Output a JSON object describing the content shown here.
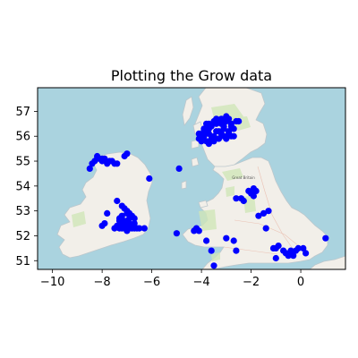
{
  "chart_data": {
    "type": "scatter",
    "title": "Plotting the Grow data",
    "xlabel": "",
    "ylabel": "",
    "xlim": [
      -10.6,
      1.8
    ],
    "ylim": [
      50.65,
      57.95
    ],
    "xticks": [
      -10,
      -8,
      -6,
      -4,
      -2,
      0
    ],
    "xtick_labels": [
      "−10",
      "−8",
      "−6",
      "−4",
      "−2",
      "0"
    ],
    "yticks": [
      51,
      52,
      53,
      54,
      55,
      56,
      57
    ],
    "ytick_labels": [
      "51",
      "52",
      "53",
      "54",
      "55",
      "56",
      "57"
    ],
    "grid": false,
    "background": "OpenStreetMap basemap of Great Britain and Ireland",
    "map_labels": [
      "Great Britain"
    ],
    "colors": {
      "marker": "#0000ff",
      "sea": "#aad3df",
      "land": "#f2efe9",
      "green": "#cfe6b8"
    },
    "series": [
      {
        "x": [
          -3.9,
          -3.7,
          -3.5,
          -3.4,
          -3.3,
          -3.2,
          -3.1,
          -3.0,
          -2.9,
          -2.8,
          -2.7,
          -2.9,
          -3.2,
          -3.5,
          -3.7,
          -3.4,
          -3.1,
          -2.8,
          -3.6,
          -3.8,
          -4.0,
          -4.1,
          -3.9,
          -3.5,
          -3.1,
          -2.7,
          -2.9,
          -3.3,
          -3.6,
          -3.8,
          -3.2,
          -3.0,
          -2.6,
          -3.4,
          -3.7,
          -4.1,
          -3.9,
          -3.5,
          -3.3,
          -3.0,
          -2.8,
          -2.5,
          -3.1,
          -3.7
        ],
        "y": [
          56.3,
          56.5,
          56.6,
          56.7,
          56.6,
          56.5,
          56.4,
          56.6,
          56.7,
          56.5,
          56.3,
          56.2,
          56.1,
          56.0,
          56.1,
          56.2,
          56.3,
          56.4,
          55.9,
          55.8,
          55.8,
          55.9,
          56.0,
          55.9,
          56.0,
          56.0,
          56.1,
          56.2,
          56.4,
          56.5,
          56.7,
          56.8,
          56.6,
          56.5,
          56.3,
          56.1,
          56.2,
          55.8,
          55.9,
          55.9,
          56.0,
          56.6,
          56.3,
          55.7
        ]
      },
      {
        "x": [
          -8.5,
          -8.4,
          -8.3,
          -8.2,
          -8.1,
          -8.0,
          -7.9,
          -7.8,
          -7.6,
          -7.5,
          -8.2,
          -8.0,
          -7.7,
          -7.4,
          -7.1,
          -7.0,
          -6.1,
          -4.9
        ],
        "y": [
          54.7,
          54.9,
          55.0,
          55.1,
          55.1,
          55.0,
          55.1,
          54.9,
          55.0,
          54.9,
          55.2,
          55.1,
          55.0,
          54.9,
          55.2,
          55.3,
          54.3,
          54.7
        ]
      },
      {
        "x": [
          -7.2,
          -7.1,
          -7.0,
          -6.9,
          -6.8,
          -6.7,
          -7.3,
          -7.2,
          -7.0,
          -6.9,
          -6.8,
          -7.1,
          -7.0,
          -6.9,
          -7.2,
          -7.4,
          -7.5,
          -7.3,
          -7.1,
          -6.9,
          -6.7,
          -6.6,
          -7.0,
          -7.2,
          -6.8,
          -7.0,
          -6.9,
          -6.7,
          -7.1,
          -7.3,
          -6.5,
          -6.3,
          -7.4,
          -7.8,
          -8.0,
          -7.9
        ],
        "y": [
          53.2,
          53.1,
          53.0,
          52.9,
          52.8,
          52.7,
          52.6,
          52.5,
          52.4,
          52.3,
          52.3,
          52.4,
          52.6,
          52.5,
          52.8,
          52.4,
          52.3,
          52.3,
          52.3,
          52.4,
          52.3,
          52.3,
          52.2,
          52.3,
          52.4,
          52.9,
          52.7,
          52.5,
          52.6,
          52.7,
          52.3,
          52.3,
          53.4,
          52.9,
          52.4,
          52.5
        ]
      },
      {
        "x": [
          -2.1,
          -1.9,
          -1.8,
          -2.0,
          -1.9,
          -2.6,
          -2.4,
          -2.3,
          -1.5,
          -1.7,
          -1.3,
          -1.4,
          -4.3,
          -4.2,
          -4.1,
          -3.8,
          -3.0,
          -2.7,
          -3.6,
          -2.6,
          -1.0,
          -1.1,
          -0.9,
          -0.7,
          -0.4,
          -0.2,
          -0.1,
          0.1,
          0.2,
          -0.3,
          -0.5,
          -1.0,
          -0.6,
          1.0,
          -3.5,
          -5.0
        ],
        "y": [
          53.8,
          53.9,
          53.8,
          53.7,
          53.6,
          53.5,
          53.5,
          53.4,
          52.9,
          52.8,
          53.0,
          52.3,
          52.2,
          52.3,
          52.2,
          51.8,
          51.9,
          51.8,
          51.4,
          51.4,
          51.5,
          51.5,
          51.6,
          51.4,
          51.4,
          51.4,
          51.5,
          51.5,
          51.3,
          51.2,
          51.2,
          51.1,
          51.3,
          51.9,
          50.8,
          52.1
        ]
      }
    ]
  }
}
